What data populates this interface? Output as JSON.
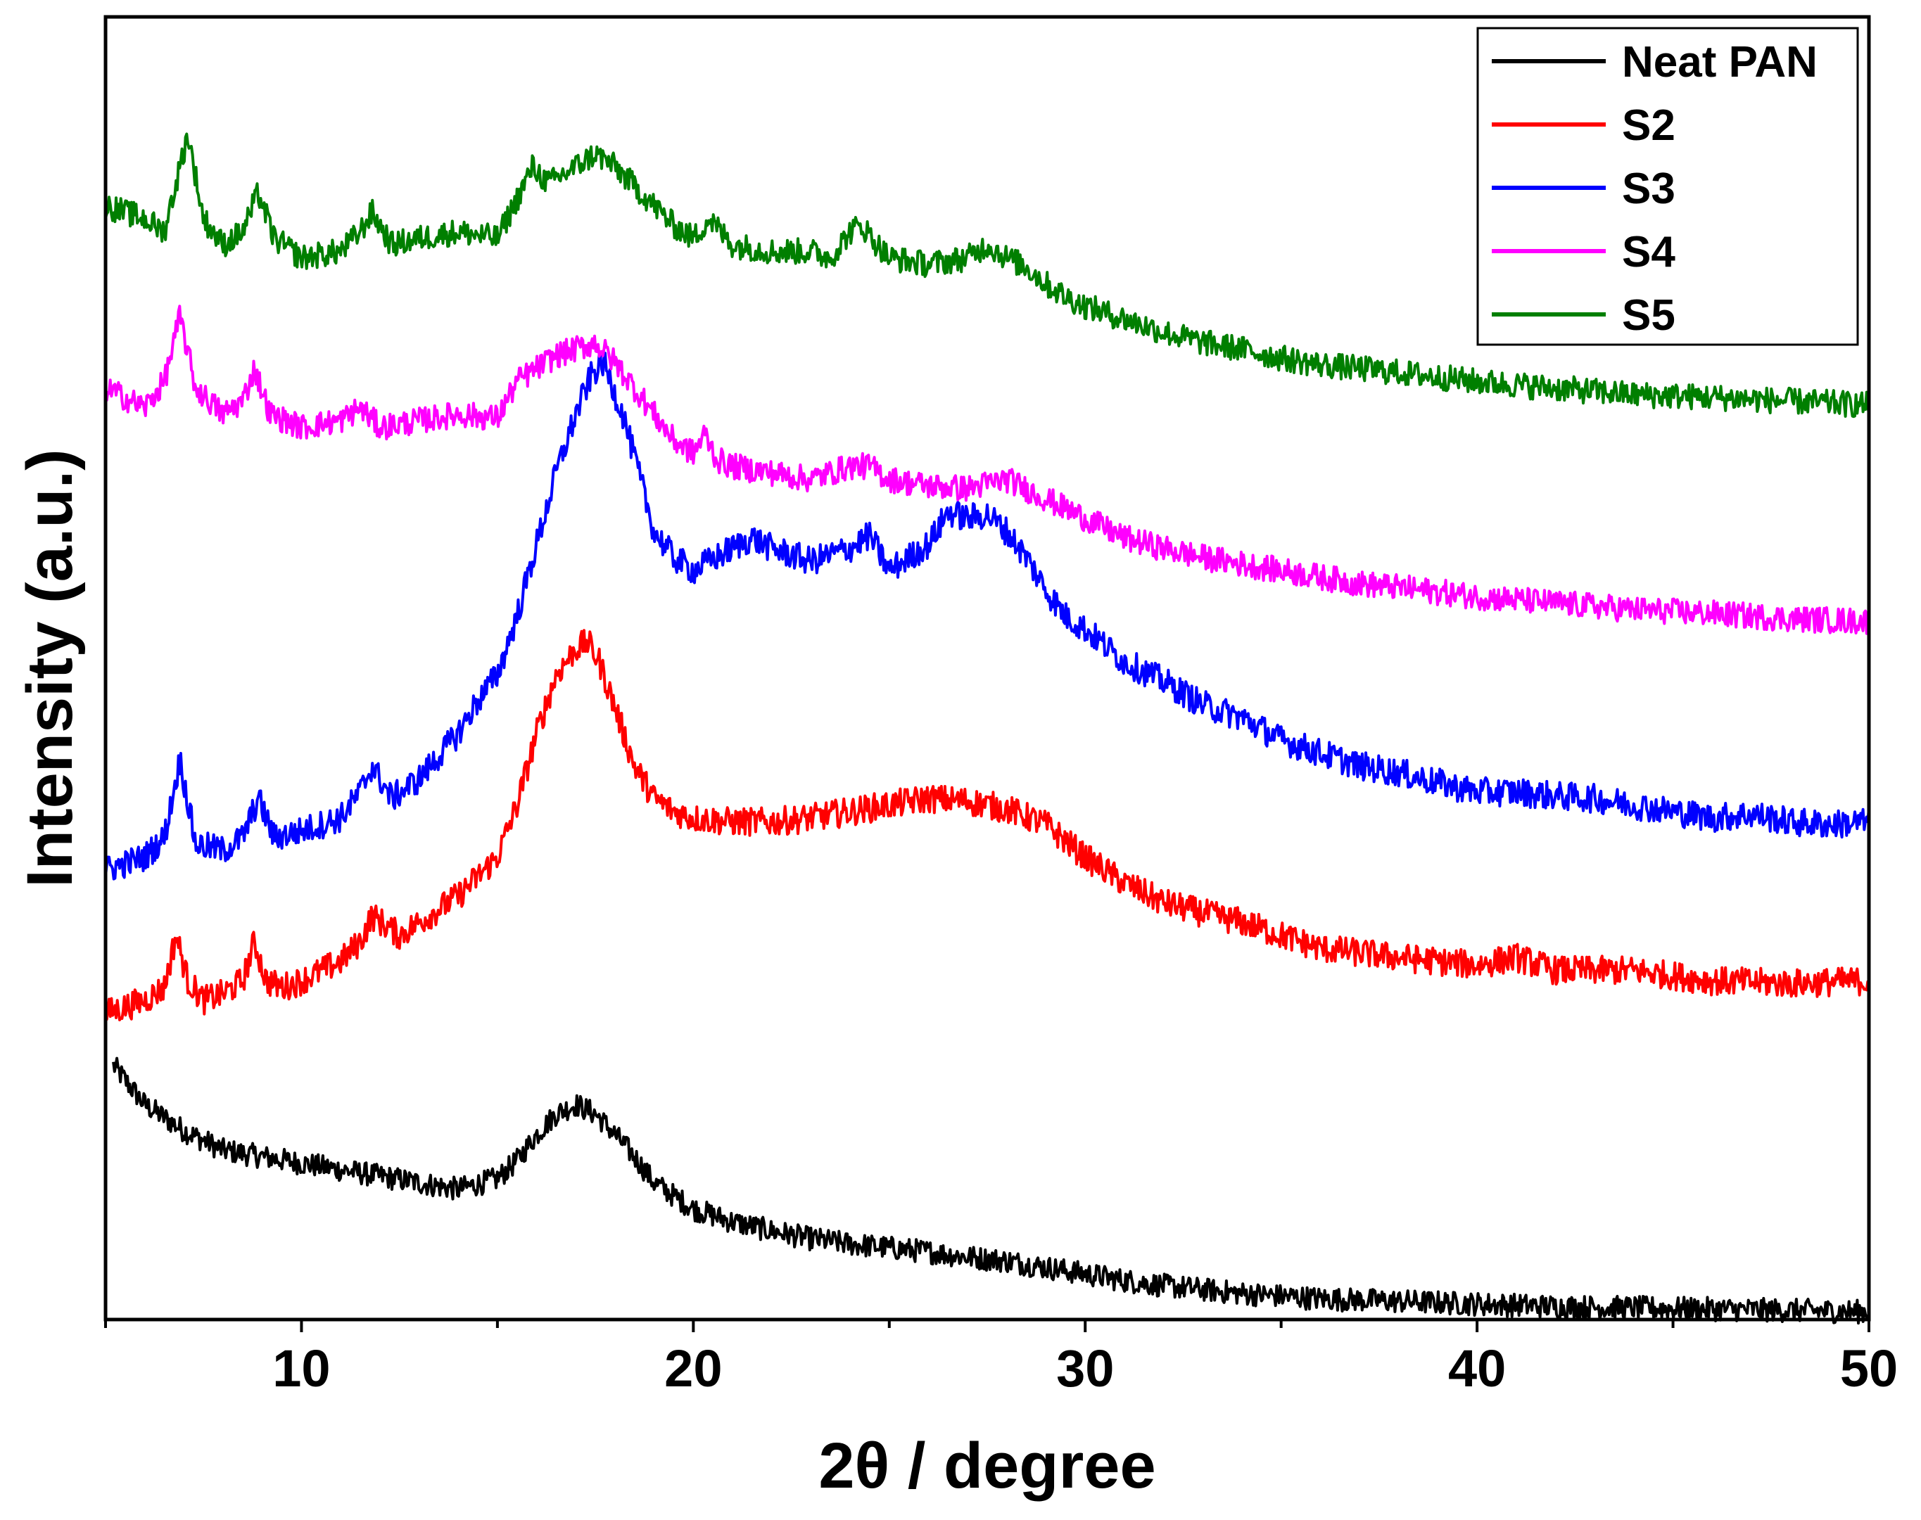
{
  "chart_data": {
    "type": "line",
    "title": "",
    "xlabel": "2θ / degree",
    "ylabel": "Intensity (a.u.)",
    "xlim": [
      5,
      50
    ],
    "ylim": [
      0,
      10
    ],
    "x_ticks": [
      10,
      20,
      30,
      40,
      50
    ],
    "x_tick_labels": [
      "10",
      "20",
      "30",
      "40",
      "50"
    ],
    "y_tick_labels_shown": false,
    "grid": false,
    "legend_position": "top-right",
    "series": [
      {
        "name": "Neat PAN",
        "color": "#000000",
        "x": [
          5.2,
          6,
          7,
          8,
          9,
          10,
          11,
          12,
          13,
          14,
          15,
          15.5,
          16,
          16.5,
          17,
          17.5,
          18,
          18.5,
          19,
          20,
          21,
          22,
          23,
          24,
          25,
          26,
          27,
          28,
          29,
          30,
          31,
          32,
          33,
          34,
          35,
          36,
          37,
          38,
          39,
          40,
          42,
          44,
          46,
          48,
          50
        ],
        "y": [
          1.95,
          1.65,
          1.45,
          1.3,
          1.25,
          1.2,
          1.15,
          1.1,
          1.05,
          1.0,
          1.08,
          1.22,
          1.42,
          1.58,
          1.65,
          1.58,
          1.42,
          1.25,
          1.05,
          0.85,
          0.75,
          0.68,
          0.62,
          0.58,
          0.55,
          0.52,
          0.48,
          0.45,
          0.4,
          0.35,
          0.3,
          0.26,
          0.23,
          0.2,
          0.18,
          0.16,
          0.15,
          0.14,
          0.13,
          0.12,
          0.1,
          0.09,
          0.08,
          0.07,
          0.06
        ]
      },
      {
        "name": "S2",
        "color": "#ff0000",
        "x": [
          5,
          6,
          6.5,
          6.8,
          7.1,
          7.5,
          8,
          8.5,
          8.8,
          9.1,
          9.5,
          10,
          11,
          11.5,
          11.8,
          12.5,
          13,
          14,
          15,
          15.5,
          16,
          16.5,
          17,
          17.3,
          17.6,
          18,
          18.5,
          19,
          19.5,
          20,
          21,
          22,
          23,
          24,
          25,
          26,
          27,
          28,
          29,
          30,
          31,
          32,
          33,
          34,
          35,
          36,
          38,
          40,
          41,
          42,
          44,
          46,
          48,
          50
        ],
        "y": [
          2.35,
          2.45,
          2.55,
          2.95,
          2.6,
          2.45,
          2.5,
          2.6,
          2.9,
          2.6,
          2.55,
          2.6,
          2.75,
          2.9,
          3.1,
          2.95,
          3.05,
          3.25,
          3.55,
          3.95,
          4.5,
          4.95,
          5.15,
          5.2,
          5.05,
          4.7,
          4.25,
          4.0,
          3.9,
          3.85,
          3.82,
          3.82,
          3.85,
          3.9,
          3.95,
          4.0,
          3.98,
          3.92,
          3.8,
          3.55,
          3.35,
          3.2,
          3.12,
          3.05,
          2.95,
          2.85,
          2.78,
          2.72,
          2.78,
          2.68,
          2.68,
          2.6,
          2.58,
          2.6
        ]
      },
      {
        "name": "S3",
        "color": "#0000ff",
        "x": [
          5,
          6,
          6.5,
          6.9,
          7.3,
          8,
          8.5,
          8.9,
          9.3,
          10,
          11,
          11.5,
          11.8,
          12.3,
          13,
          14,
          14.5,
          15,
          15.5,
          16,
          16.5,
          17,
          17.4,
          17.7,
          18.2,
          19,
          19.5,
          20,
          21,
          21.5,
          22,
          23,
          24,
          24.5,
          25,
          25.5,
          26,
          26.5,
          27,
          27.5,
          28,
          28.5,
          29,
          29.5,
          30,
          31,
          32,
          33,
          34,
          35,
          36,
          37,
          38,
          39,
          40,
          41,
          42,
          43,
          44,
          45,
          46,
          47,
          48,
          49,
          50
        ],
        "y": [
          3.45,
          3.55,
          3.7,
          4.3,
          3.65,
          3.6,
          3.7,
          4.0,
          3.7,
          3.75,
          3.85,
          4.05,
          4.25,
          4.0,
          4.15,
          4.5,
          4.75,
          4.95,
          5.4,
          5.95,
          6.5,
          6.95,
          7.25,
          7.35,
          6.95,
          6.05,
          5.85,
          5.75,
          5.92,
          6.0,
          5.92,
          5.82,
          5.92,
          6.02,
          5.75,
          5.85,
          5.95,
          6.2,
          6.15,
          6.18,
          6.05,
          5.85,
          5.6,
          5.4,
          5.3,
          5.05,
          4.9,
          4.72,
          4.62,
          4.45,
          4.35,
          4.25,
          4.2,
          4.12,
          4.05,
          4.05,
          4.02,
          4.0,
          3.95,
          3.9,
          3.85,
          3.88,
          3.82,
          3.8,
          3.82
        ]
      },
      {
        "name": "S4",
        "color": "#ff00ff",
        "x": [
          5,
          6,
          6.5,
          6.9,
          7.3,
          8,
          8.5,
          8.8,
          9.2,
          10,
          11,
          11.5,
          12,
          13,
          14,
          15,
          15.5,
          16,
          16.5,
          17,
          17.5,
          18,
          18.5,
          19,
          19.5,
          20,
          20.3,
          20.6,
          21,
          22,
          23,
          24,
          24.5,
          25,
          26,
          27,
          28,
          29,
          30,
          31,
          32,
          33,
          34,
          35,
          36,
          37,
          38,
          40,
          42,
          44,
          46,
          48,
          50
        ],
        "y": [
          7.15,
          7.0,
          7.2,
          7.7,
          7.15,
          6.95,
          7.05,
          7.3,
          6.95,
          6.85,
          6.9,
          7.0,
          6.85,
          6.9,
          6.95,
          6.92,
          7.2,
          7.3,
          7.4,
          7.45,
          7.5,
          7.35,
          7.15,
          6.95,
          6.75,
          6.65,
          6.8,
          6.6,
          6.55,
          6.5,
          6.45,
          6.55,
          6.55,
          6.45,
          6.4,
          6.38,
          6.45,
          6.3,
          6.15,
          6.0,
          5.92,
          5.85,
          5.8,
          5.75,
          5.7,
          5.65,
          5.62,
          5.55,
          5.5,
          5.45,
          5.42,
          5.38,
          5.36
        ]
      },
      {
        "name": "S5",
        "color": "#007f00",
        "x": [
          5,
          6,
          6.5,
          7.1,
          7.5,
          8,
          8.5,
          8.9,
          9.3,
          10,
          11,
          11.5,
          11.8,
          12.3,
          13,
          14,
          15,
          15.5,
          15.9,
          16.3,
          17,
          17.5,
          18,
          18.5,
          19,
          19.5,
          20,
          20.4,
          20.7,
          21,
          22,
          23,
          23.5,
          24,
          24.3,
          24.7,
          25,
          26,
          27,
          27.5,
          28,
          28.5,
          29,
          29.5,
          30,
          31,
          32,
          33,
          34,
          35,
          36,
          37,
          38,
          40,
          42,
          44,
          46,
          48,
          50
        ],
        "y": [
          8.55,
          8.45,
          8.35,
          9.1,
          8.45,
          8.25,
          8.35,
          8.65,
          8.3,
          8.15,
          8.2,
          8.35,
          8.5,
          8.25,
          8.3,
          8.35,
          8.3,
          8.6,
          8.85,
          8.72,
          8.85,
          8.95,
          8.85,
          8.7,
          8.55,
          8.4,
          8.3,
          8.45,
          8.35,
          8.25,
          8.2,
          8.2,
          8.15,
          8.35,
          8.4,
          8.25,
          8.15,
          8.1,
          8.15,
          8.25,
          8.15,
          8.08,
          7.95,
          7.85,
          7.78,
          7.68,
          7.58,
          7.5,
          7.45,
          7.38,
          7.33,
          7.3,
          7.27,
          7.2,
          7.15,
          7.1,
          7.08,
          7.05,
          7.02
        ]
      }
    ]
  }
}
